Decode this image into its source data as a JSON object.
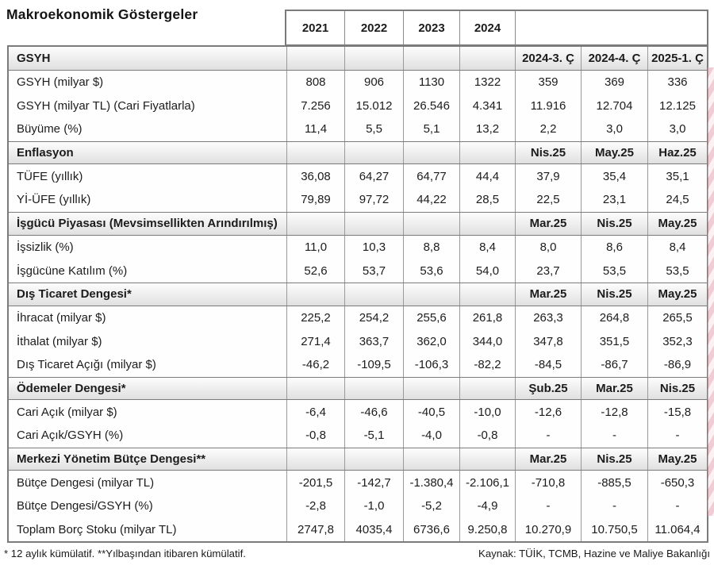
{
  "page": {
    "title": "Makroekonomik Göstergeler",
    "footnote_left": "* 12 aylık kümülatif. **Yılbaşından itibaren kümülatif.",
    "footnote_right": "Kaynak: TÜİK, TCMB, Hazine ve Maliye Bakanlığı"
  },
  "colors": {
    "border_dark": "#7b7b7b",
    "border_light": "#9a9a9a",
    "section_bg_top": "#fdfdfd",
    "section_bg_bottom": "#e0e0e0",
    "text": "#1c1c1c",
    "pink_accent": "#e4a4b1"
  },
  "table": {
    "year_headers": [
      "2021",
      "2022",
      "2023",
      "2024"
    ],
    "sections": [
      {
        "label": "GSYH",
        "periods": [
          "2024-3. Ç",
          "2024-4. Ç",
          "2025-1. Ç"
        ],
        "rows": [
          {
            "label": "GSYH (milyar $)",
            "values": [
              "808",
              "906",
              "1130",
              "1322",
              "359",
              "369",
              "336"
            ]
          },
          {
            "label": "GSYH (milyar TL) (Cari Fiyatlarla)",
            "values": [
              "7.256",
              "15.012",
              "26.546",
              "4.341",
              "11.916",
              "12.704",
              "12.125"
            ]
          },
          {
            "label": "Büyüme (%)",
            "values": [
              "11,4",
              "5,5",
              "5,1",
              "13,2",
              "2,2",
              "3,0",
              "3,0"
            ]
          }
        ]
      },
      {
        "label": "Enflasyon",
        "periods": [
          "Nis.25",
          "May.25",
          "Haz.25"
        ],
        "rows": [
          {
            "label": "TÜFE (yıllık)",
            "values": [
              "36,08",
              "64,27",
              "64,77",
              "44,4",
              "37,9",
              "35,4",
              "35,1"
            ]
          },
          {
            "label": "Yİ-ÜFE (yıllık)",
            "values": [
              "79,89",
              "97,72",
              "44,22",
              "28,5",
              "22,5",
              "23,1",
              "24,5"
            ]
          }
        ]
      },
      {
        "label": "İşgücü Piyasası (Mevsimsellikten Arındırılmış)",
        "periods": [
          "Mar.25",
          "Nis.25",
          "May.25"
        ],
        "rows": [
          {
            "label": "İşsizlik (%)",
            "values": [
              "11,0",
              "10,3",
              "8,8",
              "8,4",
              "8,0",
              "8,6",
              "8,4"
            ]
          },
          {
            "label": "İşgücüne Katılım (%)",
            "values": [
              "52,6",
              "53,7",
              "53,6",
              "54,0",
              "23,7",
              "53,5",
              "53,5"
            ]
          }
        ]
      },
      {
        "label": "Dış Ticaret Dengesi*",
        "periods": [
          "Mar.25",
          "Nis.25",
          "May.25"
        ],
        "rows": [
          {
            "label": "İhracat (milyar $)",
            "values": [
              "225,2",
              "254,2",
              "255,6",
              "261,8",
              "263,3",
              "264,8",
              "265,5"
            ]
          },
          {
            "label": "İthalat (milyar $)",
            "values": [
              "271,4",
              "363,7",
              "362,0",
              "344,0",
              "347,8",
              "351,5",
              "352,3"
            ]
          },
          {
            "label": "Dış Ticaret Açığı (milyar $)",
            "values": [
              "-46,2",
              "-109,5",
              "-106,3",
              "-82,2",
              "-84,5",
              "-86,7",
              "-86,9"
            ]
          }
        ]
      },
      {
        "label": "Ödemeler Dengesi*",
        "periods": [
          "Şub.25",
          "Mar.25",
          "Nis.25"
        ],
        "rows": [
          {
            "label": "Cari Açık (milyar $)",
            "values": [
              "-6,4",
              "-46,6",
              "-40,5",
              "-10,0",
              "-12,6",
              "-12,8",
              "-15,8"
            ]
          },
          {
            "label": "Cari Açık/GSYH (%)",
            "values": [
              "-0,8",
              "-5,1",
              "-4,0",
              "-0,8",
              "-",
              "-",
              "-"
            ]
          }
        ]
      },
      {
        "label": "Merkezi Yönetim Bütçe Dengesi**",
        "periods": [
          "Mar.25",
          "Nis.25",
          "May.25"
        ],
        "rows": [
          {
            "label": "Bütçe Dengesi (milyar TL)",
            "values": [
              "-201,5",
              "-142,7",
              "-1.380,4",
              "-2.106,1",
              "-710,8",
              "-885,5",
              "-650,3"
            ]
          },
          {
            "label": "Bütçe Dengesi/GSYH (%)",
            "values": [
              "-2,8",
              "-1,0",
              "-5,2",
              "-4,9",
              "-",
              "-",
              "-"
            ]
          },
          {
            "label": "Toplam Borç Stoku (milyar TL)",
            "values": [
              "2747,8",
              "4035,4",
              "6736,6",
              "9.250,8",
              "10.270,9",
              "10.750,5",
              "11.064,4"
            ]
          }
        ]
      }
    ]
  }
}
